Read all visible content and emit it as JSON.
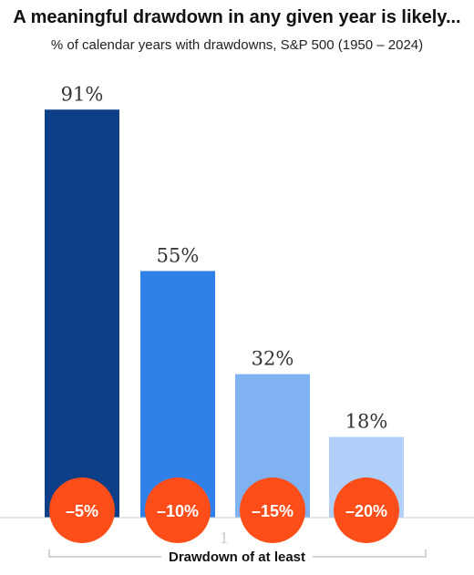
{
  "chart_data": {
    "type": "bar",
    "title": "A meaningful drawdown in any given year is likely...",
    "subtitle": "% of calendar years with drawdowns, S&P 500 (1950 – 2024)",
    "categories": [
      "–5%",
      "–10%",
      "–15%",
      "–20%"
    ],
    "values": [
      91,
      55,
      32,
      18
    ],
    "value_labels": [
      "91%",
      "55%",
      "32%",
      "18%"
    ],
    "xlabel": "Drawdown of at least",
    "ylabel": "",
    "ylim": [
      0,
      100
    ],
    "grid": false,
    "legend": "none",
    "stray_mark": "1",
    "colors": [
      "#0d3f88",
      "#2f80e8",
      "#80b2f2",
      "#b0d0fa"
    ],
    "badge_color": "#fd4d19"
  }
}
